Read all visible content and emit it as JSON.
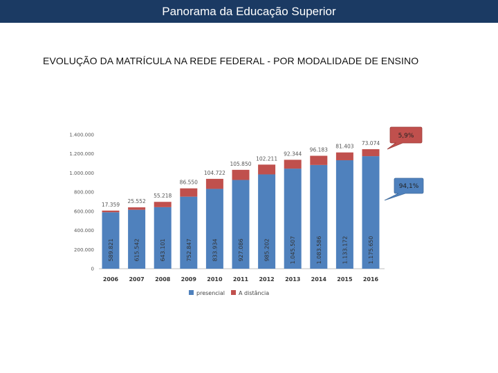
{
  "header": {
    "title": "Panorama da Educação Superior"
  },
  "slide": {
    "title": "EVOLUÇÃO DA MATRÍCULA NA REDE FEDERAL - POR MODALIDADE DE ENSINO"
  },
  "chart_data": {
    "type": "bar",
    "stacked": true,
    "categories": [
      "2006",
      "2007",
      "2008",
      "2009",
      "2010",
      "2011",
      "2012",
      "2013",
      "2014",
      "2015",
      "2016"
    ],
    "series": [
      {
        "name": "presencial",
        "color": "#4f81bd",
        "values": [
          589821,
          615542,
          643101,
          752847,
          833934,
          927086,
          985202,
          1045507,
          1083586,
          1133172,
          1175650
        ],
        "labels": [
          "589.821",
          "615.542",
          "643.101",
          "752.847",
          "833.934",
          "927.086",
          "985.202",
          "1.045.507",
          "1.083.586",
          "1.133.172",
          "1.175.650"
        ]
      },
      {
        "name": "A distância",
        "color": "#c0504d",
        "values": [
          17359,
          25552,
          55218,
          86550,
          104722,
          105850,
          102211,
          92344,
          96183,
          81403,
          73074
        ],
        "labels": [
          "17.359",
          "25.552",
          "55.218",
          "86.550",
          "104.722",
          "105.850",
          "102.211",
          "92.344",
          "96.183",
          "81.403",
          "73.074"
        ]
      }
    ],
    "yticks": [
      "0",
      "200.000",
      "400.000",
      "600.000",
      "800.000",
      "1.000.000",
      "1.200.000",
      "1.400.000"
    ],
    "ylim": [
      0,
      1400000
    ],
    "grid": false,
    "legend": "bottom",
    "callouts": [
      {
        "text": "5,9%",
        "color": "#c0504d"
      },
      {
        "text": "94,1%",
        "color": "#4f81bd"
      }
    ]
  }
}
